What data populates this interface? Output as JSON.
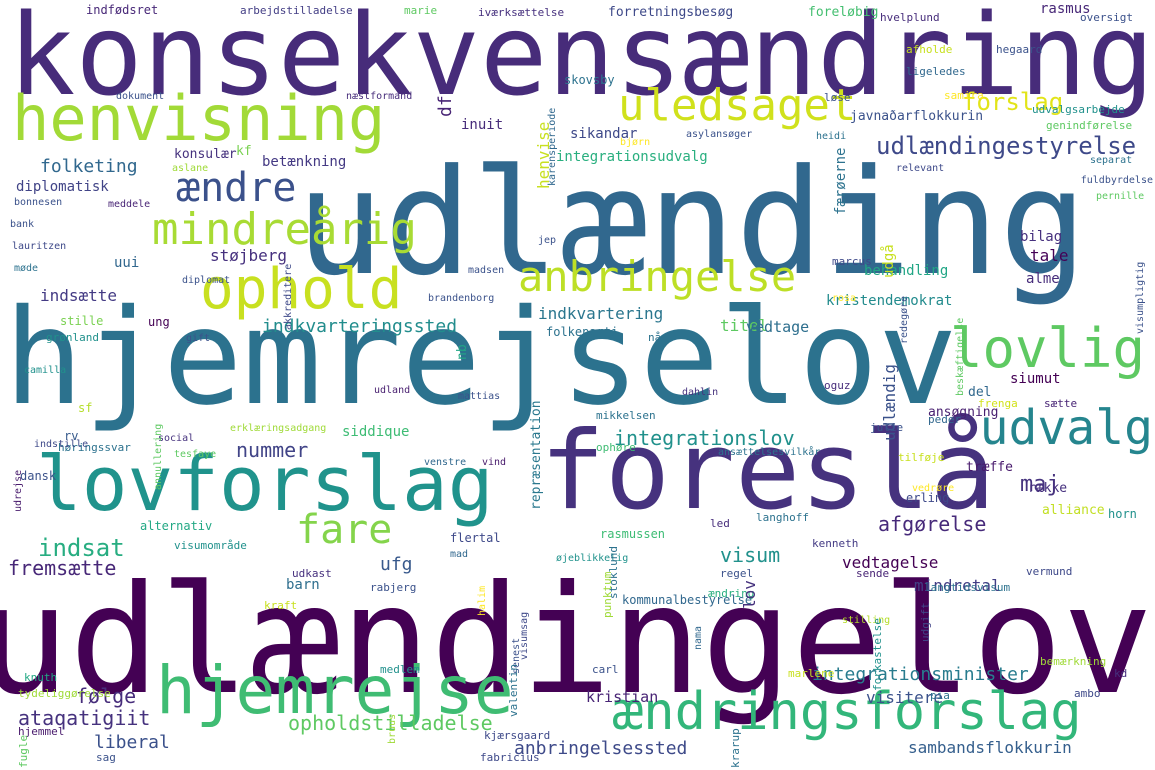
{
  "words": [
    {
      "text": "konsekvensændring",
      "color": "#472c7a"
    },
    {
      "text": "udlænding",
      "color": "#31688e"
    },
    {
      "text": "hjemrejselov",
      "color": "#2c728e"
    },
    {
      "text": "udlændingelov",
      "color": "#440154"
    },
    {
      "text": "foreslå",
      "color": "#46327e"
    },
    {
      "text": "lovforslag",
      "color": "#20938c"
    },
    {
      "text": "henvisning",
      "color": "#a2da37"
    },
    {
      "text": "hjemrejse",
      "color": "#3fbc73"
    },
    {
      "text": "ophold",
      "color": "#c8e020"
    },
    {
      "text": "ændringsforslag",
      "color": "#32b67a"
    },
    {
      "text": "uledsaget",
      "color": "#d0e11c"
    },
    {
      "text": "mindreårig",
      "color": "#a8db34"
    },
    {
      "text": "ændre",
      "color": "#3b518b"
    },
    {
      "text": "anbringelse",
      "color": "#bddf26"
    },
    {
      "text": "lovlig",
      "color": "#5ec962"
    },
    {
      "text": "udvalg",
      "color": "#25858e"
    },
    {
      "text": "fare",
      "color": "#84d44b"
    },
    {
      "text": "udlændingestyrelse",
      "color": "#3e4989"
    },
    {
      "text": "indsat",
      "color": "#27ad81"
    },
    {
      "text": "forslag",
      "color": "#e2e418"
    },
    {
      "text": "integrationslov",
      "color": "#21918c"
    },
    {
      "text": "opholdstilladelse",
      "color": "#5ec962"
    },
    {
      "text": "integrationsminister",
      "color": "#287c8e"
    },
    {
      "text": "anbringelsessted",
      "color": "#3e4a89"
    },
    {
      "text": "indkvarteringssted",
      "color": "#228d8d"
    },
    {
      "text": "folketing",
      "color": "#31688e"
    },
    {
      "text": "nummer",
      "color": "#414487"
    },
    {
      "text": "maj",
      "color": "#46337e"
    },
    {
      "text": "afgørelse",
      "color": "#472a7a"
    },
    {
      "text": "fremsætte",
      "color": "#482878"
    },
    {
      "text": "følge",
      "color": "#472d7b"
    },
    {
      "text": "ataqatigiit",
      "color": "#46327e"
    },
    {
      "text": "liberal",
      "color": "#3b518b"
    },
    {
      "text": "kristian",
      "color": "#482475"
    },
    {
      "text": "visitere",
      "color": "#3b528b"
    },
    {
      "text": "sambandsflokkurin",
      "color": "#355f8d"
    },
    {
      "text": "vedtagelse",
      "color": "#440154"
    },
    {
      "text": "mindretal",
      "color": "#433e85"
    },
    {
      "text": "visum",
      "color": "#21918c"
    },
    {
      "text": "ufg",
      "color": "#38598c"
    },
    {
      "text": "barn",
      "color": "#2e6e8e"
    },
    {
      "text": "støjberg",
      "color": "#46307e"
    },
    {
      "text": "uui",
      "color": "#31678e"
    },
    {
      "text": "indsætte",
      "color": "#443b84"
    },
    {
      "text": "indkvartering",
      "color": "#2a768e"
    },
    {
      "text": "titel",
      "color": "#5ec962"
    },
    {
      "text": "vedtage",
      "color": "#2e6f8e"
    },
    {
      "text": "kristendemokrat",
      "color": "#228b8d"
    },
    {
      "text": "behandling",
      "color": "#21a685"
    },
    {
      "text": "tale",
      "color": "#440256"
    },
    {
      "text": "alme",
      "color": "#472d7b"
    },
    {
      "text": "bilag",
      "color": "#46307e"
    },
    {
      "text": "siddique",
      "color": "#3dbc74"
    },
    {
      "text": "integrationsudvalg",
      "color": "#29af7f"
    },
    {
      "text": "sikandar",
      "color": "#3e4989"
    },
    {
      "text": "inuit",
      "color": "#472c7a"
    },
    {
      "text": "df",
      "color": "#482475"
    },
    {
      "text": "javnaðarflokkurin",
      "color": "#3b528b"
    },
    {
      "text": "betænkning",
      "color": "#443983"
    },
    {
      "text": "konsulær",
      "color": "#46327e"
    },
    {
      "text": "kf",
      "color": "#7ad151"
    },
    {
      "text": "diplomatisk",
      "color": "#414487"
    },
    {
      "text": "indfødsret",
      "color": "#482878"
    },
    {
      "text": "forretningsbesøg",
      "color": "#3e4989"
    },
    {
      "text": "foreløbig",
      "color": "#44bf70"
    },
    {
      "text": "rasmus",
      "color": "#482878"
    },
    {
      "text": "arbejdstilladelse",
      "color": "#433e85"
    },
    {
      "text": "iværksættelse",
      "color": "#46307e"
    },
    {
      "text": "oversigt",
      "color": "#3b518b"
    },
    {
      "text": "hvelplund",
      "color": "#472d7b"
    },
    {
      "text": "dokument",
      "color": "#3b528b"
    },
    {
      "text": "næstformand",
      "color": "#472d7b"
    },
    {
      "text": "siumut",
      "color": "#440154"
    },
    {
      "text": "ansøgning",
      "color": "#481f70"
    },
    {
      "text": "alliance",
      "color": "#c2df23"
    },
    {
      "text": "træffe",
      "color": "#481a6c"
    },
    {
      "text": "række",
      "color": "#46307e"
    },
    {
      "text": "ung",
      "color": "#440154"
    },
    {
      "text": "stille",
      "color": "#7ad151"
    },
    {
      "text": "grønland",
      "color": "#21918c"
    },
    {
      "text": "sf",
      "color": "#b5de2b"
    },
    {
      "text": "rv",
      "color": "#375a8c"
    },
    {
      "text": "dansk",
      "color": "#3b528b"
    },
    {
      "text": "høringssvar",
      "color": "#2c728e"
    },
    {
      "text": "alternativ",
      "color": "#22a884"
    },
    {
      "text": "rasmussen",
      "color": "#3dbc74"
    },
    {
      "text": "social",
      "color": "#46327e"
    },
    {
      "text": "erklæringsadgang",
      "color": "#a0da39"
    },
    {
      "text": "annullering",
      "color": "#5ec962"
    },
    {
      "text": "udrejse",
      "color": "#481b6d"
    },
    {
      "text": "indstille",
      "color": "#3e4989"
    },
    {
      "text": "mattias",
      "color": "#3b528b"
    },
    {
      "text": "udland",
      "color": "#481f70"
    },
    {
      "text": "repræsentation",
      "color": "#2a788e"
    },
    {
      "text": "nb",
      "color": "#21a685"
    },
    {
      "text": "folkeparti",
      "color": "#2c728e"
    },
    {
      "text": "nå",
      "color": "#2c728e"
    },
    {
      "text": "oguz",
      "color": "#472d7b"
    },
    {
      "text": "dahlin",
      "color": "#46337e"
    },
    {
      "text": "mikkelsen",
      "color": "#2c728e"
    },
    {
      "text": "peder",
      "color": "#31688e"
    },
    {
      "text": "julie",
      "color": "#3b528b"
    },
    {
      "text": "del",
      "color": "#31688e"
    },
    {
      "text": "frenga",
      "color": "#d2e21b"
    },
    {
      "text": "sætte",
      "color": "#482475"
    },
    {
      "text": "ophøre",
      "color": "#3fbc73"
    },
    {
      "text": "ansættelsesvilkår",
      "color": "#2c728e"
    },
    {
      "text": "tilføje",
      "color": "#c8e020"
    },
    {
      "text": "venstre",
      "color": "#31688e"
    },
    {
      "text": "vind",
      "color": "#481a6c"
    },
    {
      "text": "tesfaye",
      "color": "#5ec962"
    },
    {
      "text": "vedrøre",
      "color": "#fde725"
    },
    {
      "text": "erling",
      "color": "#3e4989"
    },
    {
      "text": "horn",
      "color": "#21918c"
    },
    {
      "text": "flertal",
      "color": "#3e4989"
    },
    {
      "text": "led",
      "color": "#472d7b"
    },
    {
      "text": "langhoff",
      "color": "#2c728e"
    },
    {
      "text": "visumområde",
      "color": "#21918c"
    },
    {
      "text": "mad",
      "color": "#31688e"
    },
    {
      "text": "øjeblikkelig",
      "color": "#20928c"
    },
    {
      "text": "stoklund",
      "color": "#2c728e"
    },
    {
      "text": "regel",
      "color": "#3b528b"
    },
    {
      "text": "kenneth",
      "color": "#443b84"
    },
    {
      "text": "sende",
      "color": "#482475"
    },
    {
      "text": "vermund",
      "color": "#3e4989"
    },
    {
      "text": "udkast",
      "color": "#46307e"
    },
    {
      "text": "rabjerg",
      "color": "#3b528b"
    },
    {
      "text": "kommunalbestyrelse",
      "color": "#31688e"
    },
    {
      "text": "punktum",
      "color": "#a0da39"
    },
    {
      "text": "ændring",
      "color": "#29af7f"
    },
    {
      "text": "langtidsvisum",
      "color": "#2c728e"
    },
    {
      "text": "udgift",
      "color": "#414487"
    },
    {
      "text": "kraft",
      "color": "#c8e020"
    },
    {
      "text": "halim",
      "color": "#fde725"
    },
    {
      "text": "visumsag",
      "color": "#3e4989"
    },
    {
      "text": "senest",
      "color": "#3b518b"
    },
    {
      "text": "nama",
      "color": "#31688e"
    },
    {
      "text": "stilling",
      "color": "#b5de2b"
    },
    {
      "text": "forkastelse",
      "color": "#21918c"
    },
    {
      "text": "valentin",
      "color": "#2c728e"
    },
    {
      "text": "carl",
      "color": "#3b528b"
    },
    {
      "text": "marlene",
      "color": "#c8e020"
    },
    {
      "text": "bemærkning",
      "color": "#a0da39"
    },
    {
      "text": "kd",
      "color": "#46307e"
    },
    {
      "text": "knuth",
      "color": "#22a884"
    },
    {
      "text": "medlem",
      "color": "#21918c"
    },
    {
      "text": "pia",
      "color": "#2c728e"
    },
    {
      "text": "ambo",
      "color": "#3e4989"
    },
    {
      "text": "tydeliggørelse",
      "color": "#a0da39"
    },
    {
      "text": "hjemmel",
      "color": "#481a6c"
    },
    {
      "text": "bruus",
      "color": "#a0da39"
    },
    {
      "text": "fugle",
      "color": "#5ec962"
    },
    {
      "text": "sag",
      "color": "#3b528b"
    },
    {
      "text": "kjærsgaard",
      "color": "#3e4989"
    },
    {
      "text": "fabricius",
      "color": "#3e4989"
    },
    {
      "text": "krarup",
      "color": "#2c728e"
    },
    {
      "text": "afholde",
      "color": "#c8e020"
    },
    {
      "text": "ligeledes",
      "color": "#31688e"
    },
    {
      "text": "hegaard",
      "color": "#3b528b"
    },
    {
      "text": "samira",
      "color": "#fde725"
    },
    {
      "text": "løse",
      "color": "#3b528b"
    },
    {
      "text": "genindførelse",
      "color": "#5ec962"
    },
    {
      "text": "udvalgsarbejde",
      "color": "#21918c"
    },
    {
      "text": "asylansøger",
      "color": "#3b528b"
    },
    {
      "text": "heidi",
      "color": "#2c728e"
    },
    {
      "text": "karensperiode",
      "color": "#31688e"
    },
    {
      "text": "bjørn",
      "color": "#fde725"
    },
    {
      "text": "skovsby",
      "color": "#2c728e"
    },
    {
      "text": "marie",
      "color": "#5ec962"
    },
    {
      "text": "el",
      "color": "#3e4989"
    },
    {
      "text": "aslane",
      "color": "#a0da39"
    },
    {
      "text": "meddele",
      "color": "#482475"
    },
    {
      "text": "bonnesen",
      "color": "#3b528b"
    },
    {
      "text": "bank",
      "color": "#3b528b"
    },
    {
      "text": "lauritzen",
      "color": "#3e4989"
    },
    {
      "text": "møde",
      "color": "#2c728e"
    },
    {
      "text": "diplomat",
      "color": "#3b528b"
    },
    {
      "text": "akkreditere",
      "color": "#3e4989"
    },
    {
      "text": "gift",
      "color": "#3b528b"
    },
    {
      "text": "camilla",
      "color": "#21918c"
    },
    {
      "text": "madsen",
      "color": "#3b528b"
    },
    {
      "text": "jep",
      "color": "#3b528b"
    },
    {
      "text": "marcus",
      "color": "#3e4989"
    },
    {
      "text": "brandenborg",
      "color": "#3b528b"
    },
    {
      "text": "rosa",
      "color": "#fde725"
    },
    {
      "text": "redegøre",
      "color": "#3b528b"
    },
    {
      "text": "beskæftigelse",
      "color": "#5ec962"
    },
    {
      "text": "visumpligtig",
      "color": "#3b528b"
    },
    {
      "text": "relevant",
      "color": "#3e4989"
    },
    {
      "text": "separat",
      "color": "#2c728e"
    },
    {
      "text": "fuldbyrdelse",
      "color": "#3b528b"
    },
    {
      "text": "pernille",
      "color": "#5ec962"
    },
    {
      "text": "færøerne",
      "color": "#2c728e"
    },
    {
      "text": "udgå",
      "color": "#c8e020"
    },
    {
      "text": "indstilling",
      "color": "#21918c"
    },
    {
      "text": "henvise",
      "color": "#c8e020"
    },
    {
      "text": "udlændig",
      "color": "#3b528b"
    },
    {
      "text": "lov",
      "color": "#46327e"
    },
    {
      "text": "inger",
      "color": "#a0da39"
    },
    {
      "text": "paragraf",
      "color": "#443983"
    }
  ]
}
